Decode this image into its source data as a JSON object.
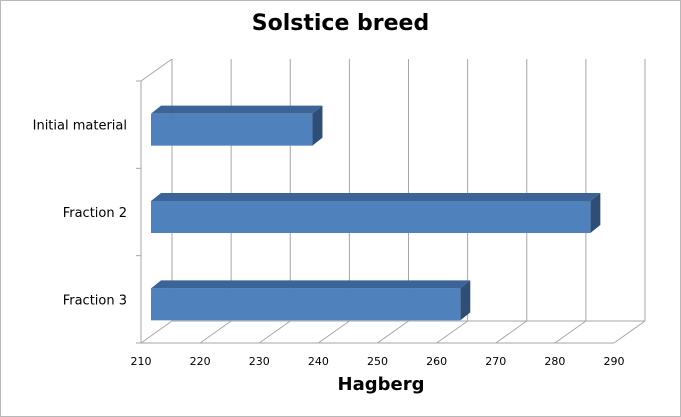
{
  "chart_data": {
    "type": "bar",
    "orientation": "horizontal",
    "style": "3d",
    "title": "Solstice breed",
    "xlabel": "Hagberg",
    "ylabel": "",
    "categories": [
      "Initial material",
      "Fraction 2",
      "Fraction 3"
    ],
    "values": [
      239,
      286,
      264
    ],
    "xlim": [
      210,
      290
    ],
    "xticks": [
      "210",
      "220",
      "230",
      "240",
      "250",
      "260",
      "270",
      "280",
      "290"
    ],
    "grid": "vertical",
    "legend": "none",
    "bar_color": "#4f81bd",
    "bar_top_color": "#3d6496",
    "bar_side_color": "#2e4e78"
  }
}
